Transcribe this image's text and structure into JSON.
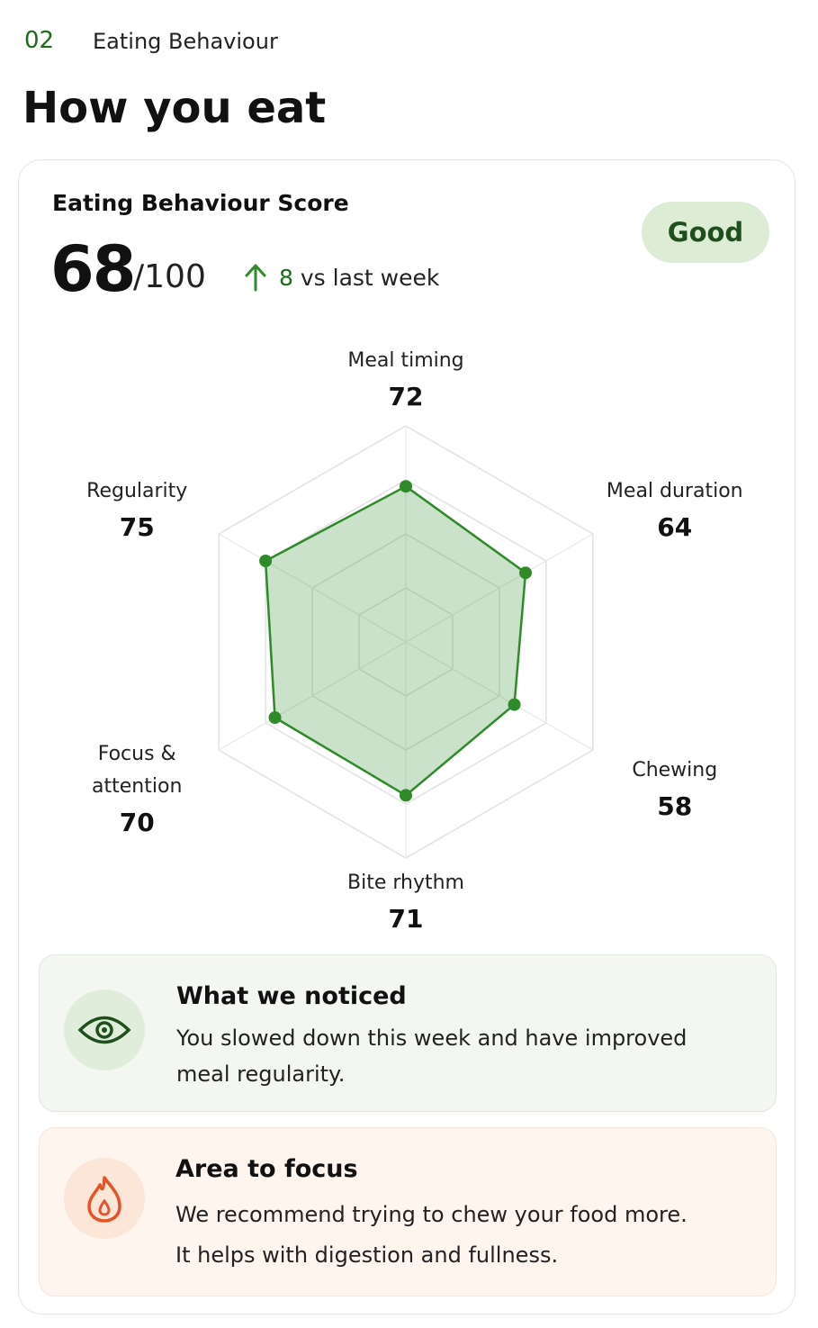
{
  "header": {
    "section_number": "02",
    "section_name": "Eating Behaviour",
    "title": "How you eat"
  },
  "score_card": {
    "title": "Eating Behaviour Score",
    "score": 68,
    "score_max": "/100",
    "trend_value": 8,
    "trend_text": "vs last week",
    "status": "Good"
  },
  "chart_data": {
    "type": "radar",
    "categories": [
      "Meal timing",
      "Meal duration",
      "Chewing",
      "Bite rhythm",
      "Focus & attention",
      "Regularity"
    ],
    "values": [
      72,
      64,
      58,
      71,
      70,
      75
    ],
    "color": "#2f8a2a",
    "ylim": [
      0,
      100
    ],
    "yticks": [
      25,
      50,
      75,
      100
    ],
    "grid": true
  },
  "insights": [
    {
      "title": "What we noticed",
      "text_lines": [
        "You slowed down this week and have improved",
        "meal regularity."
      ]
    },
    {
      "title": "Area to focus",
      "text_lines": [
        "We recommend trying to chew your food more.",
        "It helps with digestion and fullness."
      ]
    }
  ]
}
